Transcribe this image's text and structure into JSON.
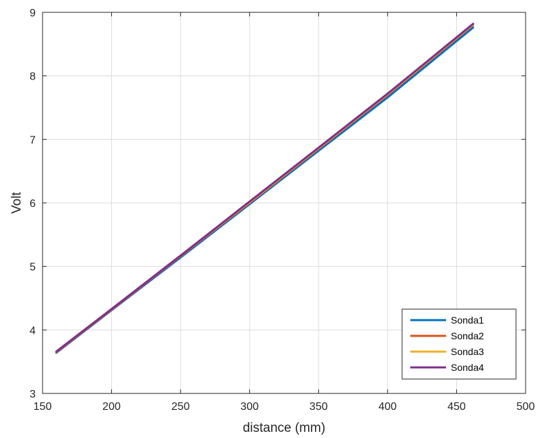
{
  "chart_data": {
    "type": "line",
    "title": "",
    "xlabel": "distance (mm)",
    "ylabel": "Volt",
    "xlim": [
      150,
      500
    ],
    "ylim": [
      3,
      9
    ],
    "xticks": [
      150,
      200,
      250,
      300,
      350,
      400,
      450,
      500
    ],
    "yticks": [
      3,
      4,
      5,
      6,
      7,
      8,
      9
    ],
    "grid": true,
    "legend_position": "bottom-right",
    "series": [
      {
        "name": "Sonda1",
        "color": "#0072BD",
        "x": [
          160,
          200,
          250,
          300,
          350,
          400,
          462
        ],
        "y": [
          3.64,
          4.31,
          5.14,
          5.98,
          6.82,
          7.66,
          8.76
        ]
      },
      {
        "name": "Sonda2",
        "color": "#D95319",
        "x": [
          160,
          200,
          250,
          300,
          350,
          400,
          462
        ],
        "y": [
          3.65,
          4.32,
          5.16,
          6.0,
          6.85,
          7.7,
          8.8
        ]
      },
      {
        "name": "Sonda3",
        "color": "#EDB120",
        "x": [
          160,
          200,
          250,
          300,
          350,
          400,
          462
        ],
        "y": [
          3.66,
          4.33,
          5.17,
          6.01,
          6.86,
          7.71,
          8.81
        ]
      },
      {
        "name": "Sonda4",
        "color": "#7E2F8E",
        "x": [
          160,
          200,
          250,
          300,
          350,
          400,
          462
        ],
        "y": [
          3.66,
          4.33,
          5.17,
          6.02,
          6.87,
          7.72,
          8.82
        ]
      }
    ]
  }
}
